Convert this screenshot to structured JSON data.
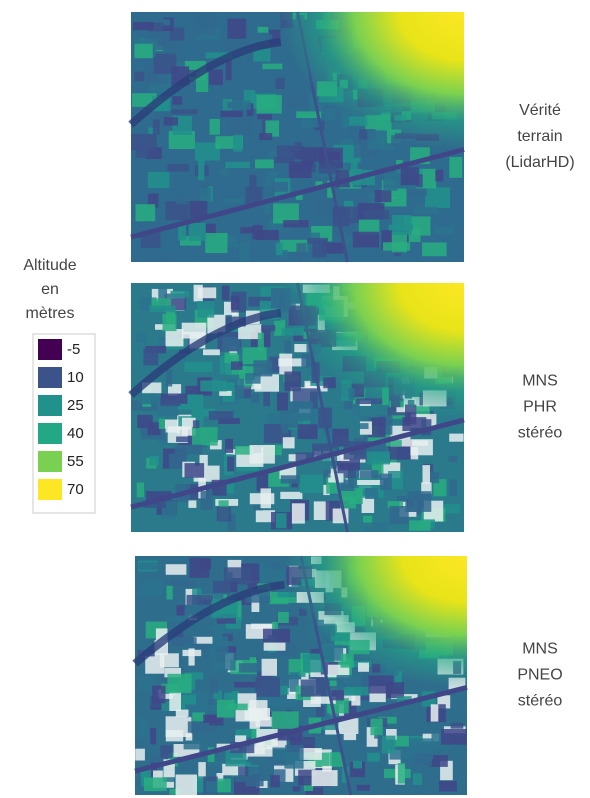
{
  "panels": [
    {
      "label_lines": [
        "Vérité",
        "terrain",
        "(LidarHD)"
      ]
    },
    {
      "label_lines": [
        "MNS",
        "PHR",
        "stéréo"
      ]
    },
    {
      "label_lines": [
        "MNS",
        "PNEO",
        "stéréo"
      ]
    }
  ],
  "legend": {
    "title_lines": [
      "Altitude",
      "en",
      "mètres"
    ],
    "entries": [
      {
        "value": -5,
        "color": "#440154"
      },
      {
        "value": 10,
        "color": "#3b528b"
      },
      {
        "value": 25,
        "color": "#21918c"
      },
      {
        "value": 40,
        "color": "#22a884"
      },
      {
        "value": 55,
        "color": "#7ad151"
      },
      {
        "value": 70,
        "color": "#fde725"
      }
    ]
  }
}
